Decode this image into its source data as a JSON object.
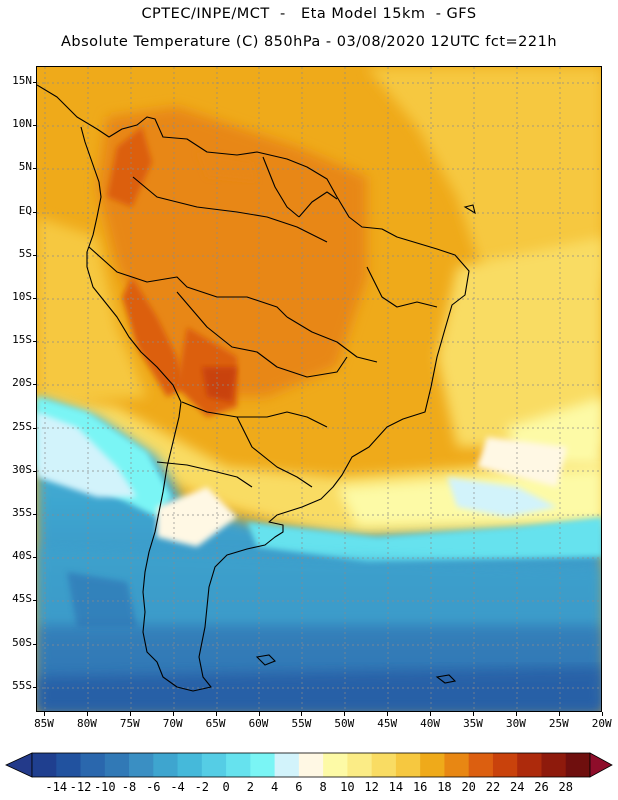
{
  "title_line1": "CPTEC/INPE/MCT  -   Eta Model 15km  - GFS",
  "title_line2": "Absolute Temperature (C) 850hPa - 03/08/2020 12UTC fct=221h",
  "lat_labels": [
    "15N",
    "10N",
    "5N",
    "EQ",
    "5S",
    "10S",
    "15S",
    "20S",
    "25S",
    "30S",
    "35S",
    "40S",
    "45S",
    "50S",
    "55S"
  ],
  "lon_labels": [
    "85W",
    "80W",
    "75W",
    "70W",
    "65W",
    "60W",
    "55W",
    "50W",
    "45W",
    "40W",
    "35W",
    "30W",
    "25W",
    "20W"
  ],
  "colorbar": {
    "labels": [
      "-14",
      "-12",
      "-10",
      "-8",
      "-6",
      "-4",
      "-2",
      "0",
      "2",
      "4",
      "6",
      "8",
      "10",
      "12",
      "14",
      "16",
      "18",
      "20",
      "22",
      "24",
      "26",
      "28"
    ],
    "colors": [
      "#1f3f8f",
      "#21529f",
      "#2a67ad",
      "#3179b6",
      "#3a8fc3",
      "#3ea5cf",
      "#45b9da",
      "#55cde5",
      "#66e2ee",
      "#7af5f5",
      "#d2f3fb",
      "#fff8e4",
      "#fdfaa6",
      "#fbec86",
      "#f9dc63",
      "#f6c840",
      "#efaa1a",
      "#e88713",
      "#dc5f10",
      "#c9420c",
      "#ad2a0c",
      "#8e1a0c",
      "#6f0f0e"
    ],
    "min_arrow_color": "#233a8a",
    "max_arrow_color": "#8e0d2a"
  },
  "chart_data": {
    "type": "heatmap",
    "title": "CPTEC/INPE/MCT  -   Eta Model 15km  - GFS",
    "subtitle": "Absolute Temperature (C) 850hPa - 03/08/2020 12UTC fct=221h",
    "lon_range": [
      "85W",
      "20W"
    ],
    "lat_range": [
      "15N",
      "55S"
    ],
    "grid": true,
    "color_scale_min": -14,
    "color_scale_max": 28,
    "color_scale_step": 2
  }
}
